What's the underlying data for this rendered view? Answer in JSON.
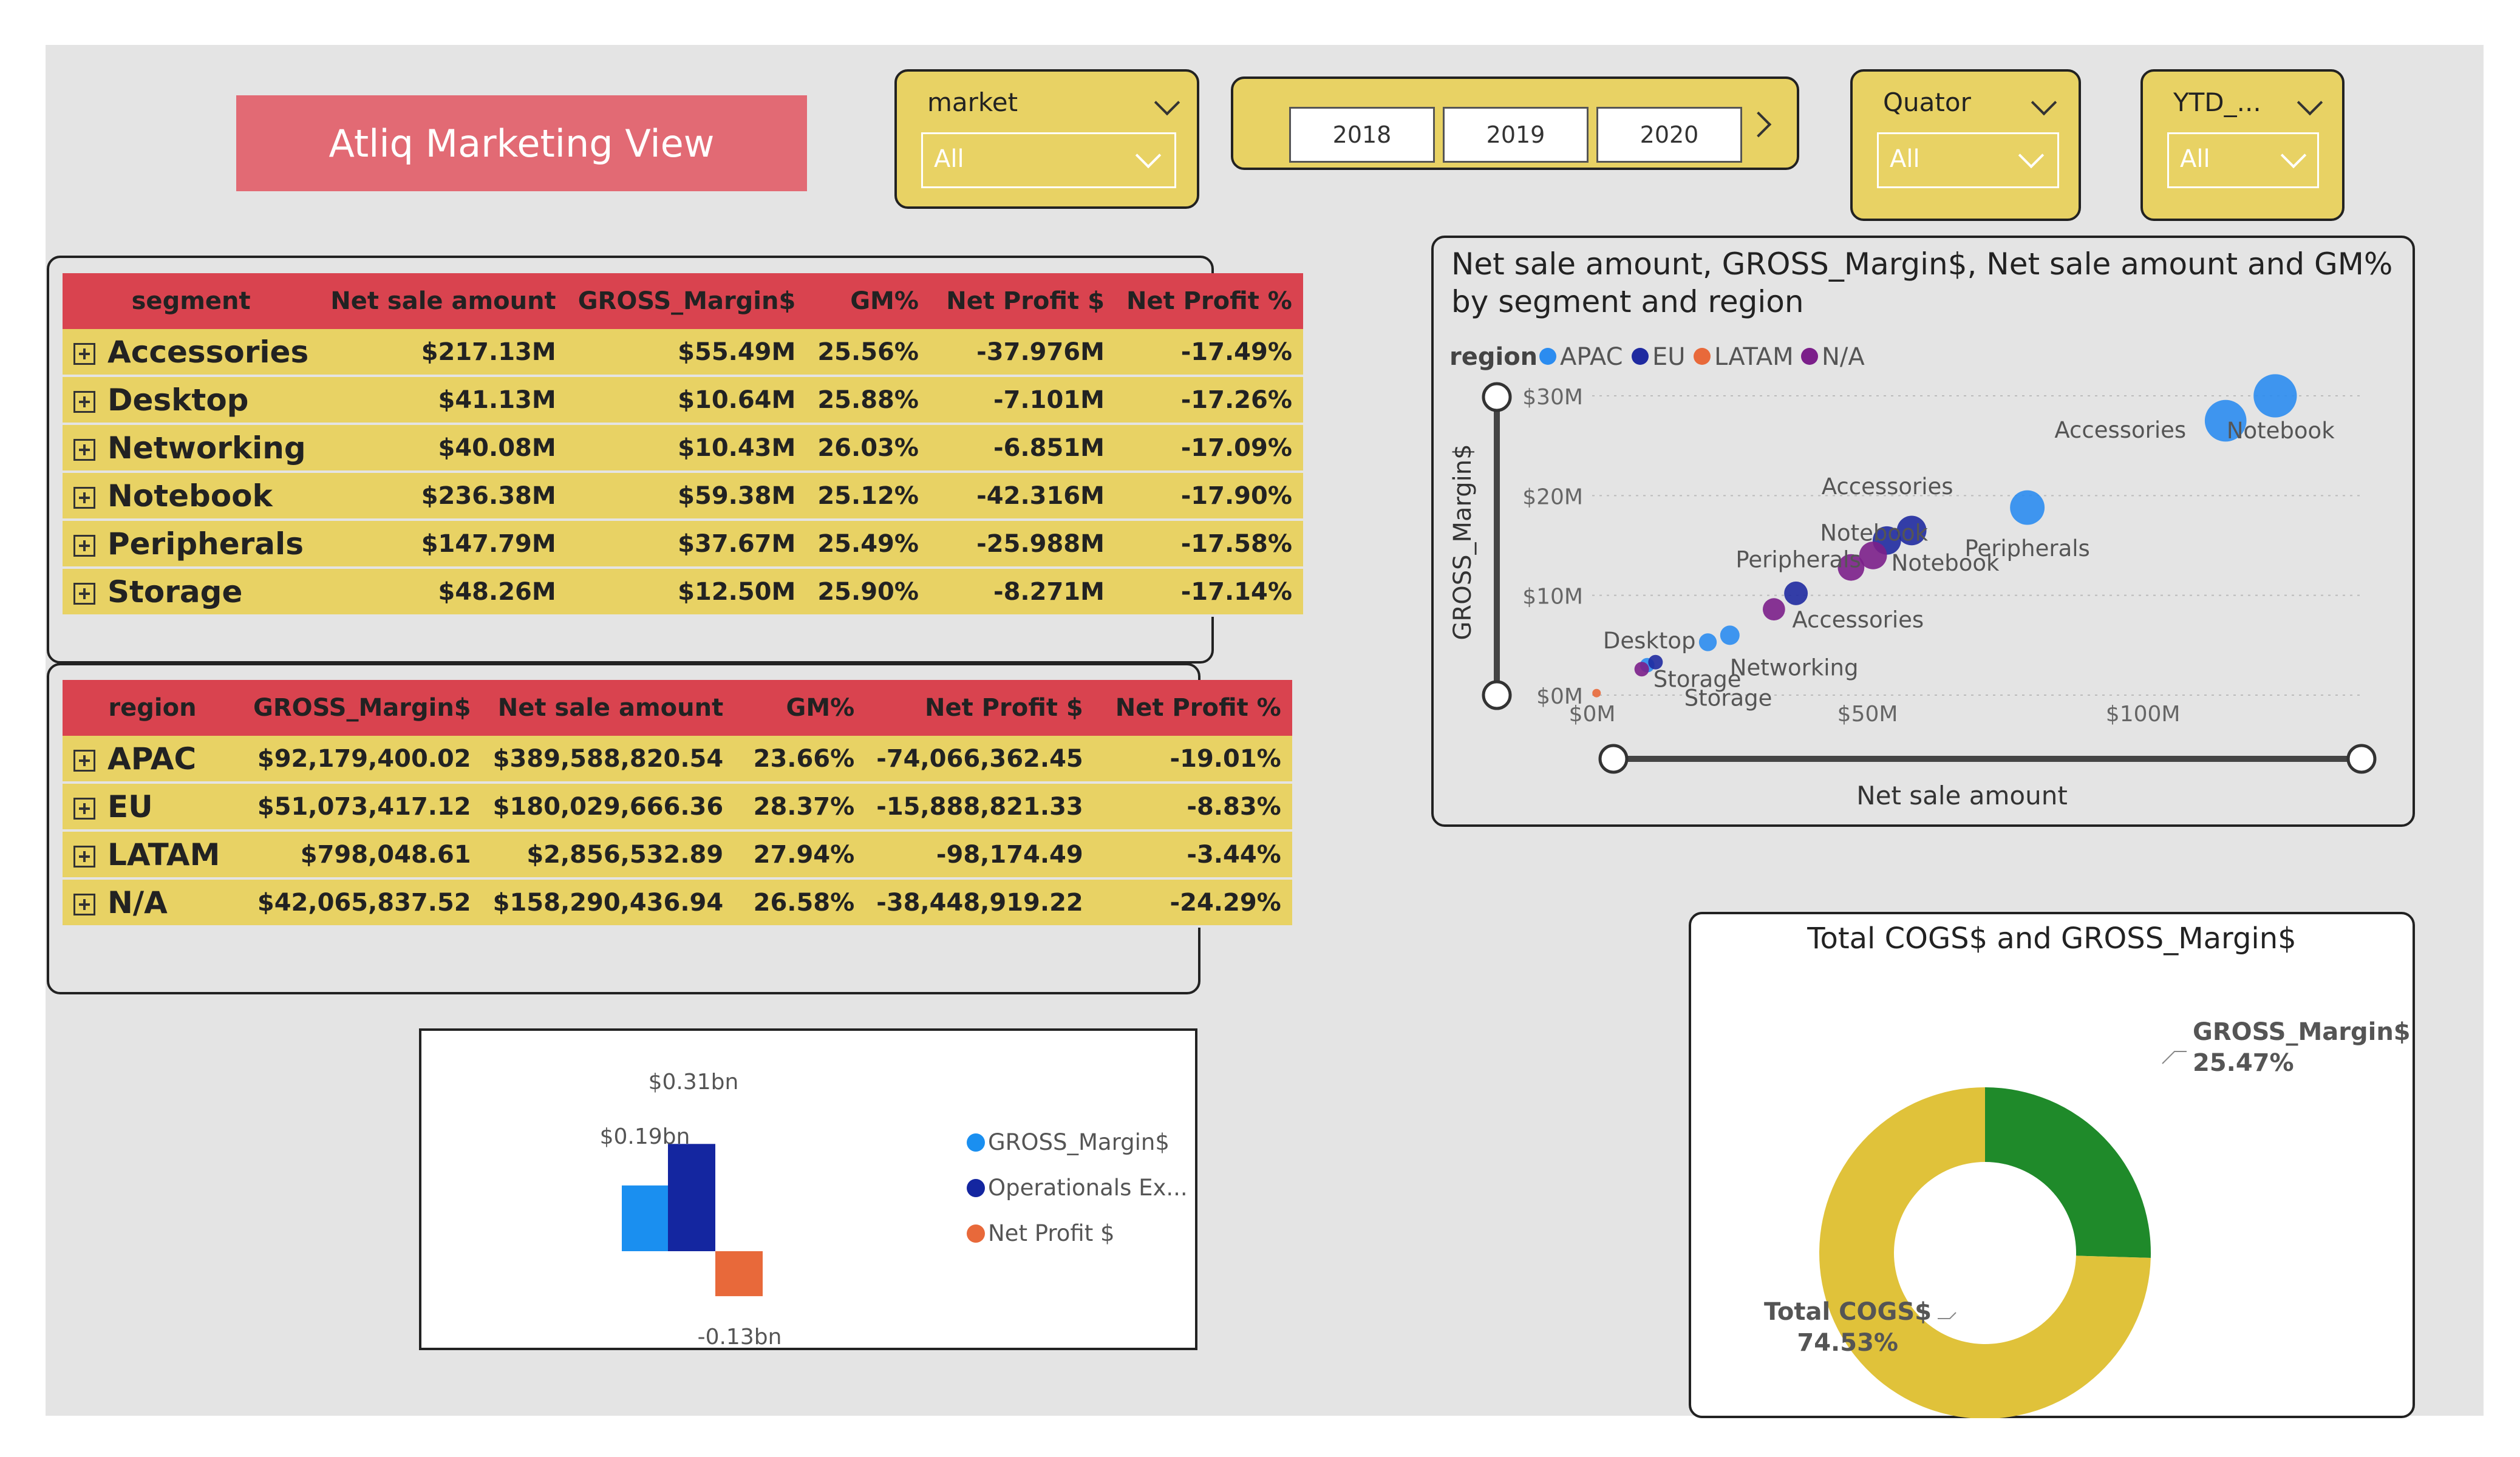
{
  "title": "Atliq Marketing View",
  "slicers": {
    "market": {
      "label": "market",
      "value": "All"
    },
    "quarter": {
      "label": "Quator",
      "value": "All"
    },
    "ytd": {
      "label": "YTD_...",
      "value": "All"
    },
    "years": [
      "2018",
      "2019",
      "2020"
    ]
  },
  "segment_table": {
    "headers": [
      "segment",
      "Net sale amount",
      "GROSS_Margin$",
      "GM%",
      "Net Profit $",
      "Net Profit %"
    ],
    "rows": [
      [
        "Accessories",
        "$217.13M",
        "$55.49M",
        "25.56%",
        "-37.976M",
        "-17.49%"
      ],
      [
        "Desktop",
        "$41.13M",
        "$10.64M",
        "25.88%",
        "-7.101M",
        "-17.26%"
      ],
      [
        "Networking",
        "$40.08M",
        "$10.43M",
        "26.03%",
        "-6.851M",
        "-17.09%"
      ],
      [
        "Notebook",
        "$236.38M",
        "$59.38M",
        "25.12%",
        "-42.316M",
        "-17.90%"
      ],
      [
        "Peripherals",
        "$147.79M",
        "$37.67M",
        "25.49%",
        "-25.988M",
        "-17.58%"
      ],
      [
        "Storage",
        "$48.26M",
        "$12.50M",
        "25.90%",
        "-8.271M",
        "-17.14%"
      ]
    ]
  },
  "region_table": {
    "headers": [
      "region",
      "GROSS_Margin$",
      "Net sale amount",
      "GM%",
      "Net Profit $",
      "Net Profit %"
    ],
    "rows": [
      [
        "APAC",
        "$92,179,400.02",
        "$389,588,820.54",
        "23.66%",
        "-74,066,362.45",
        "-19.01%"
      ],
      [
        "EU",
        "$51,073,417.12",
        "$180,029,666.36",
        "28.37%",
        "-15,888,821.33",
        "-8.83%"
      ],
      [
        "LATAM",
        "$798,048.61",
        "$2,856,532.89",
        "27.94%",
        "-98,174.49",
        "-3.44%"
      ],
      [
        "N/A",
        "$42,065,837.52",
        "$158,290,436.94",
        "26.58%",
        "-38,448,919.22",
        "-24.29%"
      ]
    ]
  },
  "colors": {
    "APAC": "#2b8cf0",
    "EU": "#1f2aa0",
    "LATAM": "#e8693a",
    "N/A": "#7b1f8a",
    "gross": "#1a8ff0",
    "opex": "#1426a0",
    "netprofit": "#e8693a",
    "donut_cogs": "#e0c23a",
    "donut_gross": "#1f8a2a"
  },
  "chart_data": [
    {
      "type": "scatter",
      "title": "Net sale amount, GROSS_Margin$, Net sale amount and GM% by segment and region",
      "xlabel": "Net sale amount",
      "ylabel": "GROSS_Margin$",
      "xlim": [
        0,
        140
      ],
      "ylim": [
        0,
        30
      ],
      "x_ticks": [
        "$0M",
        "$50M",
        "$100M"
      ],
      "y_ticks": [
        "$0M",
        "$10M",
        "$20M",
        "$30M"
      ],
      "legend_title": "region",
      "legend": [
        "APAC",
        "EU",
        "LATAM",
        "N/A"
      ],
      "points": [
        {
          "region": "APAC",
          "segment": "Accessories",
          "x": 115,
          "y": 27.5,
          "label": "Accessories"
        },
        {
          "region": "APAC",
          "segment": "Notebook",
          "x": 124,
          "y": 30,
          "label": "Notebook"
        },
        {
          "region": "APAC",
          "segment": "Peripherals",
          "x": 79,
          "y": 18.8,
          "label": "Peripherals"
        },
        {
          "region": "APAC",
          "segment": "Desktop",
          "x": 21,
          "y": 5.3,
          "label": "Desktop"
        },
        {
          "region": "APAC",
          "segment": "Networking",
          "x": 25,
          "y": 6,
          "label": "Networking"
        },
        {
          "region": "APAC",
          "segment": "Storage",
          "x": 10,
          "y": 3,
          "label": "Storage"
        },
        {
          "region": "EU",
          "segment": "Accessories",
          "x": 58,
          "y": 16.5,
          "label": "Accessories"
        },
        {
          "region": "EU",
          "segment": "Notebook",
          "x": 53.5,
          "y": 15.5,
          "label": "Notebook"
        },
        {
          "region": "EU",
          "segment": "Peripherals",
          "x": 37,
          "y": 10.2,
          "label": ""
        },
        {
          "region": "EU",
          "segment": "Storage",
          "x": 11.5,
          "y": 3.3,
          "label": ""
        },
        {
          "region": "LATAM",
          "segment": "Accessories",
          "x": 0.8,
          "y": 0.2,
          "label": ""
        },
        {
          "region": "N/A",
          "segment": "Notebook",
          "x": 51,
          "y": 14,
          "label": "Notebook"
        },
        {
          "region": "N/A",
          "segment": "Peripherals",
          "x": 47,
          "y": 12.8,
          "label": "Peripherals"
        },
        {
          "region": "N/A",
          "segment": "Accessories",
          "x": 33,
          "y": 8.6,
          "label": "Accessories"
        },
        {
          "region": "N/A",
          "segment": "Storage",
          "x": 9,
          "y": 2.6,
          "label": "Storage"
        }
      ]
    },
    {
      "type": "bar",
      "categories": [
        "GROSS_Margin$",
        "Operationals Ex...",
        "Net Profit $"
      ],
      "values": [
        0.19,
        0.31,
        -0.13
      ],
      "data_labels": [
        "$0.19bn",
        "$0.31bn",
        "-0.13bn"
      ],
      "legend": [
        "GROSS_Margin$",
        "Operationals Ex...",
        "Net Profit $"
      ]
    },
    {
      "type": "pie",
      "title": "Total COGS$ and GROSS_Margin$",
      "labels": [
        "GROSS_Margin$",
        "Total COGS$"
      ],
      "values": [
        25.47,
        74.53
      ],
      "data_labels": [
        "25.47%",
        "74.53%"
      ]
    }
  ]
}
